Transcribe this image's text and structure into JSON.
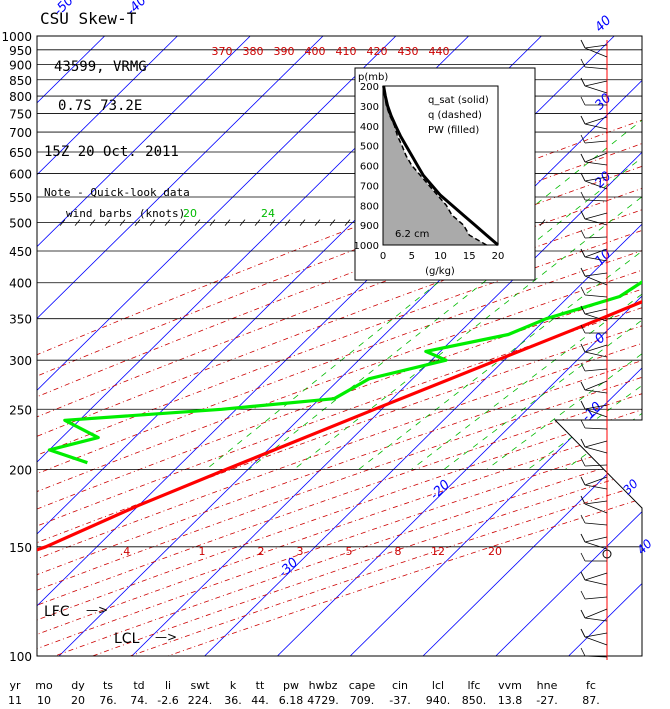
{
  "header": {
    "title": "CSU Skew-T",
    "station": "43599, VRMG",
    "location": "0.7S   73.2E",
    "time": "15Z 20 Oct. 2011",
    "note1": "Note - Quick-look data",
    "note2": "wind barbs (knots)"
  },
  "colors": {
    "temperature": "#ff0000",
    "dewpoint": "#00ee00",
    "isotherm": "#0000ff",
    "dry_adiabat": "#cc0000",
    "mixing_ratio": "#00bb00",
    "isobar": "#000000"
  },
  "labels": {
    "lfc": "LFC",
    "lcl": "LCL",
    "arrow": "—>"
  },
  "chart_data": [
    {
      "type": "line",
      "chart_kind": "skew-T log-p",
      "y_axis": "pressure (mb)",
      "y_scale": "log",
      "ylim": [
        1000,
        100
      ],
      "isobars": [
        1000,
        950,
        900,
        850,
        800,
        750,
        700,
        650,
        600,
        550,
        500,
        450,
        400,
        350,
        300,
        250,
        200,
        150,
        100
      ],
      "isobar_labels": [
        "1000",
        "950",
        "900",
        "850",
        "800",
        "750",
        "700",
        "650",
        "600",
        "550",
        "500",
        "450",
        "400",
        "350",
        "300",
        "250",
        "200",
        "150",
        "100"
      ],
      "isotherm_labels": [
        "-80",
        "-70",
        "-60",
        "-50",
        "-40",
        "-30",
        "-20",
        "-10",
        "0",
        "10",
        "20",
        "30",
        "40"
      ],
      "isotherm_values": [
        -80,
        -70,
        -60,
        -50,
        -40,
        -30,
        -20,
        -10,
        0,
        10,
        20,
        30,
        40
      ],
      "theta_labels": [
        "370",
        "380",
        "390",
        "400",
        "410",
        "420",
        "430",
        "440"
      ],
      "theta_values": [
        370,
        380,
        390,
        400,
        410,
        420,
        430,
        440
      ],
      "mixing_ratio_labels": [
        ".4",
        "1",
        "2",
        "3",
        "5",
        "8",
        "12",
        "20"
      ],
      "mixing_ratio_values": [
        0.4,
        1,
        2,
        3,
        5,
        8,
        12,
        20
      ],
      "upper_mixing_labels": [
        "20",
        "24"
      ],
      "series": [
        {
          "variable": "temperature",
          "points": [
            {
              "p": 1000,
              "t": 26.5
            },
            {
              "p": 975,
              "t": 24.5
            },
            {
              "p": 950,
              "t": 22.5
            },
            {
              "p": 925,
              "t": 21.0
            },
            {
              "p": 900,
              "t": 19.5
            },
            {
              "p": 875,
              "t": 18.0
            },
            {
              "p": 850,
              "t": 17.0
            },
            {
              "p": 800,
              "t": 14.5
            },
            {
              "p": 750,
              "t": 11.0
            },
            {
              "p": 700,
              "t": 7.5
            },
            {
              "p": 650,
              "t": 4.5
            },
            {
              "p": 600,
              "t": 1.0
            },
            {
              "p": 550,
              "t": -2.5
            },
            {
              "p": 500,
              "t": -6.0
            },
            {
              "p": 450,
              "t": -10.0
            },
            {
              "p": 400,
              "t": -15.5
            },
            {
              "p": 350,
              "t": -22.5
            },
            {
              "p": 300,
              "t": -31.0
            },
            {
              "p": 250,
              "t": -41.0
            },
            {
              "p": 200,
              "t": -53.0
            },
            {
              "p": 175,
              "t": -60.0
            },
            {
              "p": 150,
              "t": -67.0
            },
            {
              "p": 140,
              "t": -72.0
            },
            {
              "p": 130,
              "t": -74.0
            },
            {
              "p": 120,
              "t": -77.0
            },
            {
              "p": 110,
              "t": -77.0
            },
            {
              "p": 100,
              "t": -80.0
            }
          ]
        },
        {
          "variable": "dewpoint",
          "points": [
            {
              "p": 1000,
              "t": 23.0
            },
            {
              "p": 975,
              "t": 22.0
            },
            {
              "p": 950,
              "t": 19.0
            },
            {
              "p": 925,
              "t": 18.5
            },
            {
              "p": 900,
              "t": 17.0
            },
            {
              "p": 875,
              "t": 15.0
            },
            {
              "p": 850,
              "t": 14.0
            },
            {
              "p": 825,
              "t": 11.5
            },
            {
              "p": 800,
              "t": 9.5
            },
            {
              "p": 750,
              "t": 8.5
            },
            {
              "p": 700,
              "t": 5.5
            },
            {
              "p": 650,
              "t": 1.5
            },
            {
              "p": 600,
              "t": 0.0
            },
            {
              "p": 575,
              "t": -0.5
            },
            {
              "p": 550,
              "t": -3.0
            },
            {
              "p": 500,
              "t": -9.0
            },
            {
              "p": 450,
              "t": -17.0
            },
            {
              "p": 425,
              "t": -21.0
            },
            {
              "p": 400,
              "t": -22.0
            },
            {
              "p": 380,
              "t": -23.0
            },
            {
              "p": 350,
              "t": -30.0
            },
            {
              "p": 330,
              "t": -33.0
            },
            {
              "p": 310,
              "t": -42.0
            },
            {
              "p": 300,
              "t": -38.0
            },
            {
              "p": 280,
              "t": -46.0
            },
            {
              "p": 260,
              "t": -48.0
            },
            {
              "p": 250,
              "t": -62.0
            },
            {
              "p": 240,
              "t": -82.0
            },
            {
              "p": 225,
              "t": -75.0
            },
            {
              "p": 215,
              "t": -80.0
            },
            {
              "p": 205,
              "t": -73.0
            }
          ]
        }
      ],
      "summary_headers": [
        "yr",
        "mo",
        "dy",
        "ts",
        "td",
        "li",
        "swt",
        "k",
        "tt",
        "pw",
        "hwbz",
        "cape",
        "cin",
        "lcl",
        "lfc",
        "vvm",
        "hne",
        "fc"
      ],
      "summary_values": [
        "11",
        "10",
        "20",
        "76.",
        "74.",
        "-2.6",
        "224.",
        "36.",
        "44.",
        "6.18",
        "4729.",
        "709.",
        "-37.",
        "940.",
        "850.",
        "13.8",
        "-27.",
        "87."
      ],
      "wind_speed_labels": [
        "30",
        "40"
      ]
    },
    {
      "type": "area",
      "chart_kind": "moisture inset",
      "title_lines": [
        "q_sat (solid)",
        "q (dashed)",
        "PW (filled)"
      ],
      "ylabel": "p(mb)",
      "xlabel": "(g/kg)",
      "xlim": [
        0,
        20
      ],
      "ylim": [
        1000,
        200
      ],
      "x_ticks": [
        "0",
        "5",
        "10",
        "15",
        "20"
      ],
      "y_ticks": [
        "200",
        "300",
        "400",
        "500",
        "600",
        "700",
        "800",
        "900",
        "1000"
      ],
      "pw_label": "6.2 cm",
      "q_sat": [
        [
          1000,
          20.0
        ],
        [
          950,
          18.0
        ],
        [
          900,
          16.0
        ],
        [
          850,
          14.0
        ],
        [
          800,
          12.0
        ],
        [
          750,
          10.0
        ],
        [
          700,
          8.5
        ],
        [
          650,
          7.0
        ],
        [
          600,
          6.0
        ],
        [
          550,
          5.0
        ],
        [
          500,
          4.0
        ],
        [
          450,
          3.0
        ],
        [
          400,
          2.2
        ],
        [
          350,
          1.4
        ],
        [
          300,
          0.8
        ],
        [
          250,
          0.4
        ],
        [
          200,
          0.1
        ]
      ],
      "q": [
        [
          1000,
          18.0
        ],
        [
          950,
          15.0
        ],
        [
          900,
          14.0
        ],
        [
          850,
          12.0
        ],
        [
          800,
          11.0
        ],
        [
          750,
          9.5
        ],
        [
          700,
          8.0
        ],
        [
          650,
          6.5
        ],
        [
          600,
          5.0
        ],
        [
          550,
          4.0
        ],
        [
          500,
          3.3
        ],
        [
          450,
          2.5
        ],
        [
          400,
          2.0
        ],
        [
          350,
          1.2
        ],
        [
          300,
          0.6
        ],
        [
          250,
          0.3
        ],
        [
          200,
          0.1
        ]
      ]
    }
  ]
}
